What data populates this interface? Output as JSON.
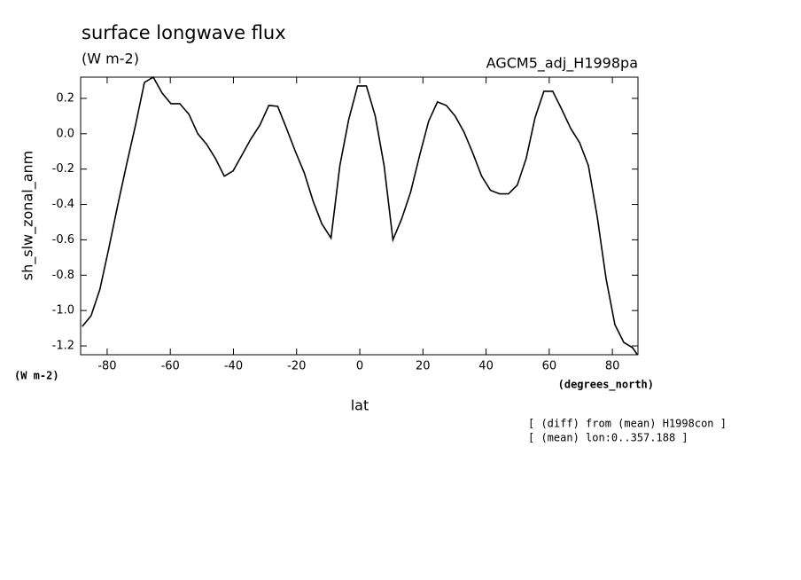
{
  "chart_data": {
    "type": "line",
    "title": "surface longwave flux",
    "subtitle": "(W m-2)",
    "run_label": "AGCM5_adj_H1998pa",
    "y_label": "sh_slw_zonal_anm",
    "y_unit": "(W m-2)",
    "x_unit": "(degrees_north)",
    "x_label": "lat",
    "notes": [
      "[ (diff) from (mean) H1998con ]",
      "[ (mean) lon:0..357.188 ]"
    ],
    "x": [
      -87.9,
      -85.1,
      -82.3,
      -79.5,
      -76.6,
      -73.8,
      -71.0,
      -68.2,
      -65.4,
      -62.6,
      -59.8,
      -57.0,
      -54.1,
      -51.3,
      -48.5,
      -45.7,
      -42.9,
      -40.1,
      -37.3,
      -34.5,
      -31.6,
      -28.8,
      -26.0,
      -23.2,
      -20.4,
      -17.6,
      -14.8,
      -12.0,
      -9.1,
      -6.3,
      -3.5,
      -0.7,
      2.1,
      4.9,
      7.7,
      10.5,
      13.3,
      16.1,
      19.0,
      21.8,
      24.6,
      27.4,
      30.2,
      33.0,
      35.8,
      38.6,
      41.4,
      44.3,
      47.1,
      49.9,
      52.7,
      55.5,
      58.3,
      61.1,
      63.9,
      66.8,
      69.6,
      72.4,
      75.2,
      78.0,
      80.8,
      83.6,
      86.4,
      87.9
    ],
    "series": [
      {
        "name": "sh_slw_zonal_anm",
        "color": "#000000",
        "values": [
          -1.09,
          -1.03,
          -0.88,
          -0.65,
          -0.4,
          -0.17,
          0.05,
          0.29,
          0.32,
          0.23,
          0.17,
          0.17,
          0.11,
          0.0,
          -0.06,
          -0.14,
          -0.24,
          -0.21,
          -0.12,
          -0.03,
          0.05,
          0.16,
          0.155,
          0.03,
          -0.1,
          -0.22,
          -0.38,
          -0.51,
          -0.59,
          -0.18,
          0.08,
          0.27,
          0.27,
          0.1,
          -0.18,
          -0.6,
          -0.48,
          -0.33,
          -0.12,
          0.07,
          0.18,
          0.16,
          0.1,
          0.01,
          -0.11,
          -0.24,
          -0.32,
          -0.34,
          -0.34,
          -0.29,
          -0.14,
          0.09,
          0.24,
          0.24,
          0.14,
          0.03,
          -0.05,
          -0.18,
          -0.47,
          -0.82,
          -1.08,
          -1.18,
          -1.21,
          -1.25
        ]
      }
    ],
    "xlim": [
      -88.4,
      88.1
    ],
    "ylim": [
      -1.25,
      0.32
    ],
    "xticks": [
      -80,
      -60,
      -40,
      -20,
      0,
      20,
      40,
      60,
      80
    ],
    "yticks": [
      -1.2,
      {
        "value": -1,
        "label": "-1.0"
      },
      -0.8,
      -0.6,
      -0.4,
      -0.2,
      {
        "value": 0,
        "label": "0.0"
      },
      0.2
    ]
  }
}
